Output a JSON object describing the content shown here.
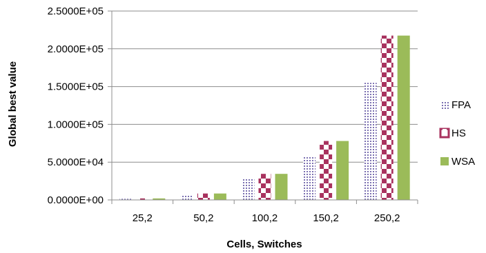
{
  "chart_data": {
    "type": "bar",
    "title": "",
    "xlabel": "Cells, Switches",
    "ylabel": "Global best value",
    "categories": [
      "25,2",
      "50,2",
      "100,2",
      "150,2",
      "250,2"
    ],
    "series": [
      {
        "name": "FPA",
        "values": [
          1500,
          7000,
          27500,
          57000,
          155000
        ],
        "color": "#7a6fb0",
        "pattern": "dotted"
      },
      {
        "name": "HS",
        "values": [
          2000,
          8500,
          34500,
          78000,
          217500
        ],
        "color": "#a8325e",
        "pattern": "checkerboard"
      },
      {
        "name": "WSA",
        "values": [
          2000,
          8500,
          34500,
          78000,
          217500
        ],
        "color": "#9bbb59",
        "pattern": "solid"
      }
    ],
    "ylim": [
      0,
      250000
    ],
    "y_ticks": [
      "0.0000E+00",
      "5.0000E+04",
      "1.0000E+05",
      "1.5000E+05",
      "2.0000E+05",
      "2.5000E+05"
    ],
    "grid": "horizontal",
    "legend_position": "right"
  }
}
